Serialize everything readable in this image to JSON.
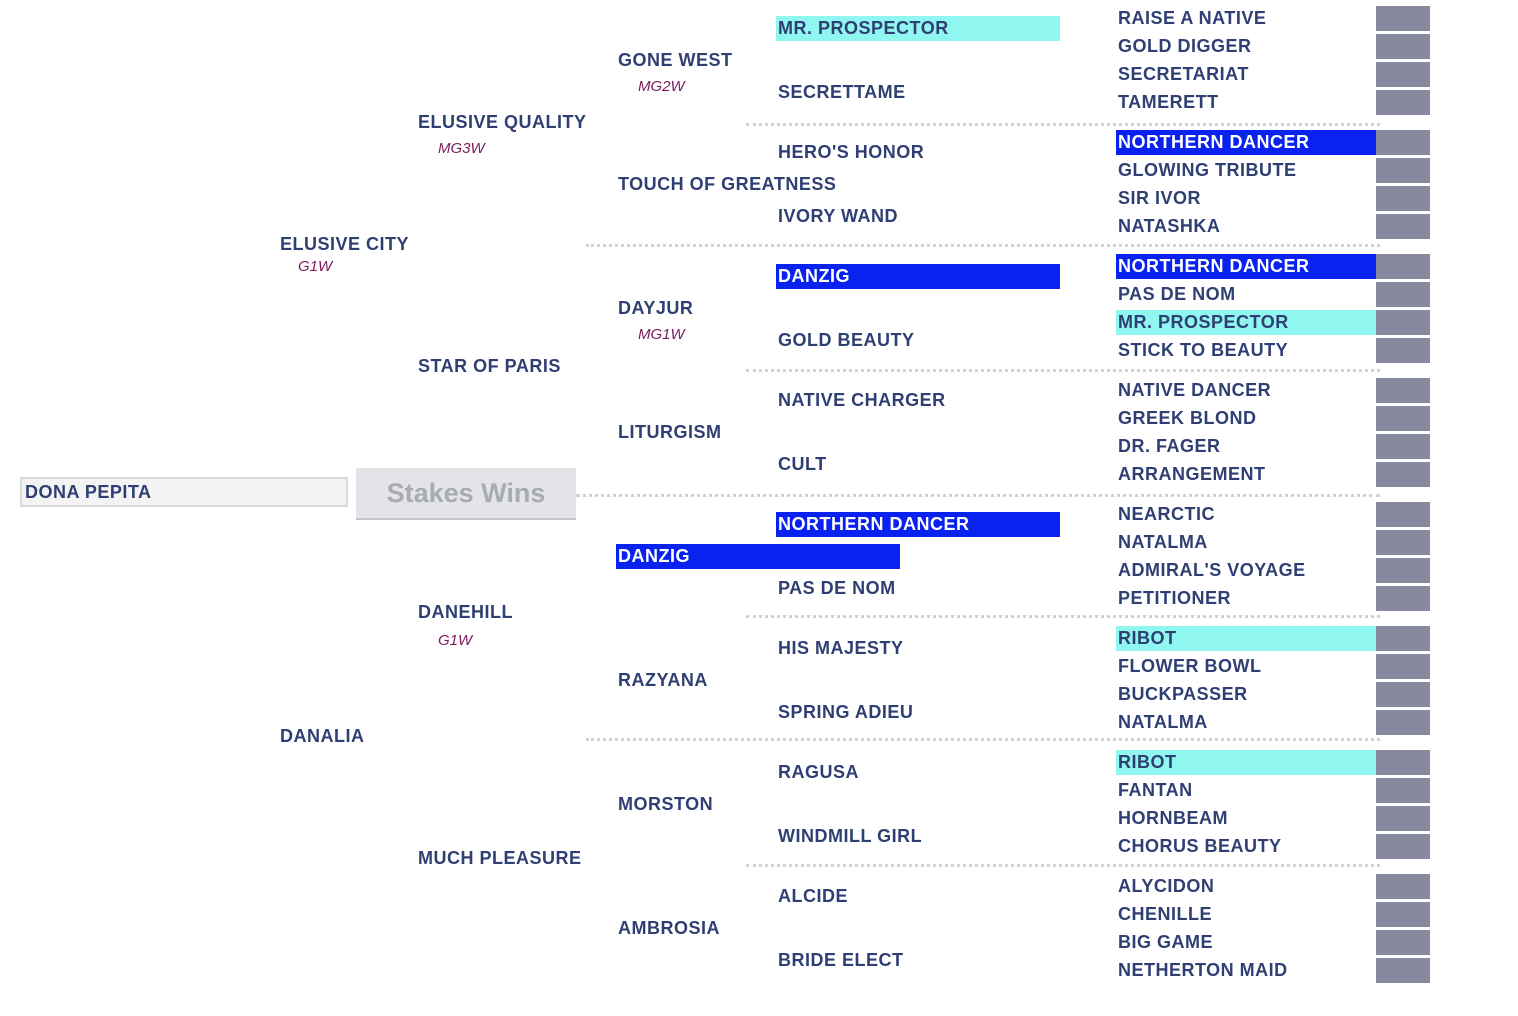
{
  "subject": {
    "name": "DONA PEPITA",
    "stakes_button": "Stakes Wins"
  },
  "colors": {
    "highlight_cyan": "#8ff7ef",
    "highlight_blue": "#0a22f0",
    "name_text": "#2f3f73",
    "badge_text": "#7a1a5c"
  },
  "generation1": {
    "sire": {
      "name": "ELUSIVE CITY",
      "badge": "G1W"
    },
    "dam": {
      "name": "DANALIA"
    }
  },
  "generation2": [
    {
      "name": "ELUSIVE QUALITY",
      "badge": "MG3W"
    },
    {
      "name": "STAR OF PARIS"
    },
    {
      "name": "DANEHILL",
      "badge": "G1W"
    },
    {
      "name": "MUCH PLEASURE"
    }
  ],
  "generation3": [
    {
      "name": "GONE WEST",
      "badge": "MG2W"
    },
    {
      "name": "TOUCH OF GREATNESS"
    },
    {
      "name": "DAYJUR",
      "badge": "MG1W"
    },
    {
      "name": "LITURGISM"
    },
    {
      "name": "DANZIG",
      "highlight": "blue"
    },
    {
      "name": "RAZYANA"
    },
    {
      "name": "MORSTON"
    },
    {
      "name": "AMBROSIA"
    }
  ],
  "generation4": [
    {
      "name": "MR. PROSPECTOR",
      "highlight": "cyan"
    },
    {
      "name": "SECRETTAME"
    },
    {
      "name": "HERO'S HONOR"
    },
    {
      "name": "IVORY WAND"
    },
    {
      "name": "DANZIG",
      "highlight": "blue"
    },
    {
      "name": "GOLD BEAUTY"
    },
    {
      "name": "NATIVE CHARGER"
    },
    {
      "name": "CULT"
    },
    {
      "name": "NORTHERN DANCER",
      "highlight": "blue"
    },
    {
      "name": "PAS DE NOM"
    },
    {
      "name": "HIS MAJESTY"
    },
    {
      "name": "SPRING ADIEU"
    },
    {
      "name": "RAGUSA"
    },
    {
      "name": "WINDMILL GIRL"
    },
    {
      "name": "ALCIDE"
    },
    {
      "name": "BRIDE ELECT"
    }
  ],
  "generation5": [
    {
      "name": "RAISE A NATIVE"
    },
    {
      "name": "GOLD DIGGER"
    },
    {
      "name": "SECRETARIAT"
    },
    {
      "name": "TAMERETT"
    },
    {
      "name": "NORTHERN DANCER",
      "highlight": "blue"
    },
    {
      "name": "GLOWING TRIBUTE"
    },
    {
      "name": "SIR IVOR"
    },
    {
      "name": "NATASHKA"
    },
    {
      "name": "NORTHERN DANCER",
      "highlight": "blue"
    },
    {
      "name": "PAS DE NOM"
    },
    {
      "name": "MR. PROSPECTOR",
      "highlight": "cyan"
    },
    {
      "name": "STICK TO BEAUTY"
    },
    {
      "name": "NATIVE DANCER"
    },
    {
      "name": "GREEK BLOND"
    },
    {
      "name": "DR. FAGER"
    },
    {
      "name": "ARRANGEMENT"
    },
    {
      "name": "NEARCTIC"
    },
    {
      "name": "NATALMA"
    },
    {
      "name": "ADMIRAL'S VOYAGE"
    },
    {
      "name": "PETITIONER"
    },
    {
      "name": "RIBOT",
      "highlight": "cyan"
    },
    {
      "name": "FLOWER BOWL"
    },
    {
      "name": "BUCKPASSER"
    },
    {
      "name": "NATALMA"
    },
    {
      "name": "RIBOT",
      "highlight": "cyan"
    },
    {
      "name": "FANTAN"
    },
    {
      "name": "HORNBEAM"
    },
    {
      "name": "CHORUS BEAUTY"
    },
    {
      "name": "ALYCIDON"
    },
    {
      "name": "CHENILLE"
    },
    {
      "name": "BIG GAME"
    },
    {
      "name": "NETHERTON MAID"
    }
  ]
}
